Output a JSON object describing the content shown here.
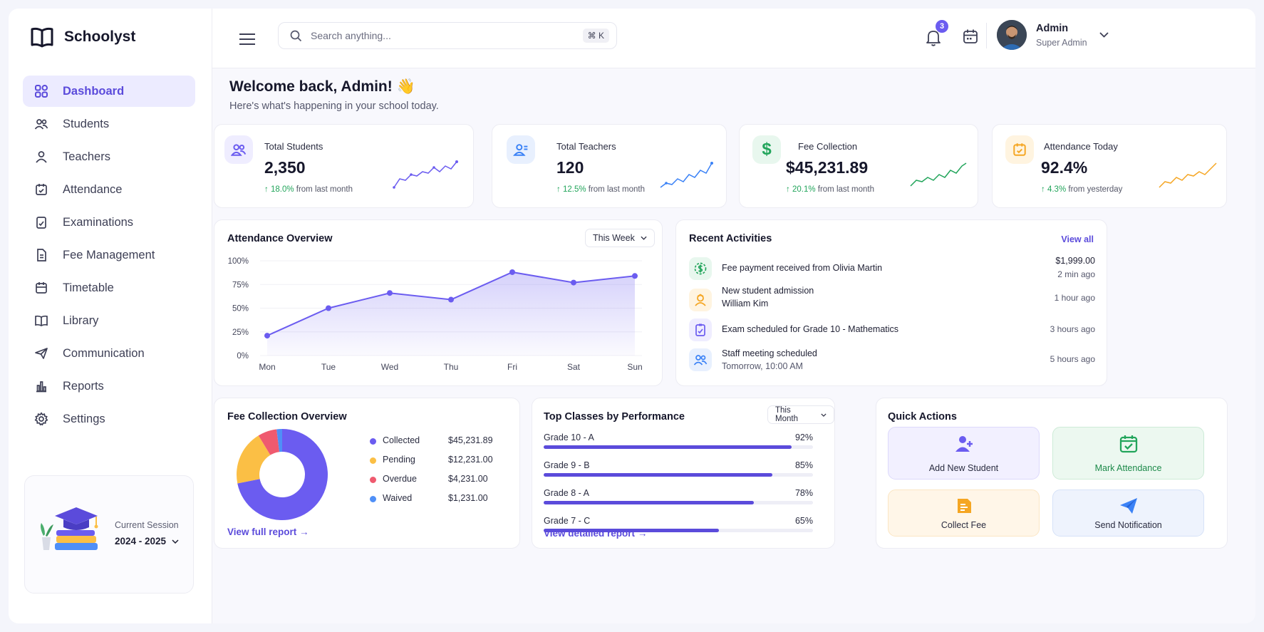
{
  "app": {
    "name": "Schoolyst"
  },
  "sidebar": {
    "items": [
      {
        "label": "Dashboard",
        "icon": "grid-icon",
        "active": true
      },
      {
        "label": "Students",
        "icon": "users-icon"
      },
      {
        "label": "Teachers",
        "icon": "user-icon"
      },
      {
        "label": "Attendance",
        "icon": "calendar-check-icon"
      },
      {
        "label": "Examinations",
        "icon": "clipboard-check-icon"
      },
      {
        "label": "Fee Management",
        "icon": "file-icon"
      },
      {
        "label": "Timetable",
        "icon": "calendar-icon"
      },
      {
        "label": "Library",
        "icon": "book-icon"
      },
      {
        "label": "Communication",
        "icon": "send-icon"
      },
      {
        "label": "Reports",
        "icon": "bar-chart-icon"
      },
      {
        "label": "Settings",
        "icon": "gear-icon"
      }
    ],
    "session": {
      "label": "Current Session",
      "value": "2024 - 2025"
    }
  },
  "topbar": {
    "search_placeholder": "Search anything...",
    "shortcut": "⌘ K",
    "notification_count": "3",
    "user": {
      "name": "Admin",
      "role": "Super Admin"
    }
  },
  "welcome": {
    "title": "Welcome back, Admin! 👋",
    "subtitle": "Here's what's happening in your school today."
  },
  "stats": [
    {
      "label": "Total Students",
      "value": "2,350",
      "change": "18.0%",
      "suffix": "from last month",
      "color": "#6b5cf0"
    },
    {
      "label": "Total Teachers",
      "value": "120",
      "change": "12.5%",
      "suffix": "from last month",
      "color": "#3b82f6"
    },
    {
      "label": "Fee Collection",
      "value": "$45,231.89",
      "change": "20.1%",
      "suffix": "from last month",
      "color": "#22a55b"
    },
    {
      "label": "Attendance Today",
      "value": "92.4%",
      "change": "4.3%",
      "suffix": "from yesterday",
      "color": "#f5a623"
    }
  ],
  "attendance": {
    "title": "Attendance Overview",
    "range": "This Week",
    "chart_data": {
      "type": "area",
      "categories": [
        "Mon",
        "Tue",
        "Wed",
        "Thu",
        "Fri",
        "Sat",
        "Sun"
      ],
      "values": [
        21,
        50,
        66,
        59,
        88,
        77,
        84
      ],
      "ylim": [
        0,
        100
      ],
      "yticks": [
        "100%",
        "75%",
        "50%",
        "25%",
        "0%"
      ],
      "color": "#6b5cf0"
    }
  },
  "activities": {
    "title": "Recent Activities",
    "view_all": "View all",
    "items": [
      {
        "text": "Fee payment received from Olivia Martin",
        "text2": "",
        "right": "$1,999.00",
        "time": "2 min ago",
        "icon": "dollar-icon",
        "color": "#22a55b",
        "bg": "#e8f7ee"
      },
      {
        "text": "New student admission",
        "text2": "William Kim",
        "right": "",
        "time": "1 hour ago",
        "icon": "student-icon",
        "color": "#f5a623",
        "bg": "#fff4e0"
      },
      {
        "text": "Exam scheduled for Grade 10 - Mathematics",
        "text2": "",
        "right": "",
        "time": "3 hours ago",
        "icon": "clipboard-icon",
        "color": "#6b5cf0",
        "bg": "#efedff"
      },
      {
        "text": "Staff meeting scheduled",
        "text2": "Tomorrow, 10:00 AM",
        "right": "",
        "time": "5 hours ago",
        "icon": "users-icon",
        "color": "#3b82f6",
        "bg": "#e8f0fe"
      }
    ]
  },
  "fees": {
    "title": "Fee Collection Overview",
    "link": "View full report",
    "chart_data": {
      "type": "pie",
      "labels": [
        "Collected",
        "Pending",
        "Overdue",
        "Waived"
      ],
      "values": [
        45231.89,
        12231.0,
        4231.0,
        1231.0
      ],
      "display": [
        "$45,231.89",
        "$12,231.00",
        "$4,231.00",
        "$1,231.00"
      ],
      "colors": [
        "#6b5cf0",
        "#fbbf45",
        "#ef5a6f",
        "#4f8ff7"
      ]
    }
  },
  "classes": {
    "title": "Top Classes by Performance",
    "range": "This Month",
    "link": "View detailed report",
    "chart_data": {
      "type": "bar",
      "categories": [
        "Grade 10 - A",
        "Grade 9 - B",
        "Grade 8 - A",
        "Grade 7 - C"
      ],
      "values": [
        92,
        85,
        78,
        65
      ],
      "display": [
        "92%",
        "85%",
        "78%",
        "65%"
      ]
    }
  },
  "quick_actions": {
    "title": "Quick Actions",
    "items": [
      {
        "label": "Add New Student",
        "icon": "user-plus-icon",
        "color": "#6b5cf0",
        "bg": "#f2f0ff",
        "border": "#dcd8fb",
        "text": "#2a2c40"
      },
      {
        "label": "Mark Attendance",
        "icon": "calendar-check-icon",
        "color": "#22a55b",
        "bg": "#ecf8f0",
        "border": "#cdebd7",
        "text": "#1d8a4a"
      },
      {
        "label": "Collect Fee",
        "icon": "receipt-icon",
        "color": "#f5a623",
        "bg": "#fff6e8",
        "border": "#fbe6c4",
        "text": "#2a2c40"
      },
      {
        "label": "Send Notification",
        "icon": "paper-plane-icon",
        "color": "#3b82f6",
        "bg": "#eef3fd",
        "border": "#d6e2f8",
        "text": "#2a2c40"
      }
    ]
  }
}
